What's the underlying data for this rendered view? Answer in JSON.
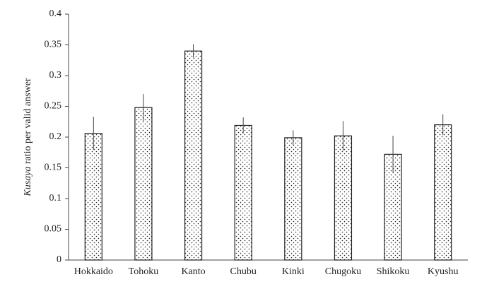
{
  "chart_data": {
    "type": "bar",
    "y_label": [
      "Kusaya",
      "ratio per valid answer"
    ],
    "categories": [
      "Hokkaido",
      "Tohoku",
      "Kanto",
      "Chubu",
      "Kinki",
      "Chugoku",
      "Shikoku",
      "Kyushu"
    ],
    "values": [
      0.206,
      0.248,
      0.34,
      0.219,
      0.199,
      0.202,
      0.172,
      0.22
    ],
    "errors": [
      0.027,
      0.022,
      0.011,
      0.013,
      0.012,
      0.024,
      0.03,
      0.017
    ],
    "color": "#222222",
    "ylim": [
      0,
      0.4
    ],
    "yticks": [
      0,
      0.05,
      0.1,
      0.15,
      0.2,
      0.25,
      0.3,
      0.35,
      0.4
    ]
  }
}
